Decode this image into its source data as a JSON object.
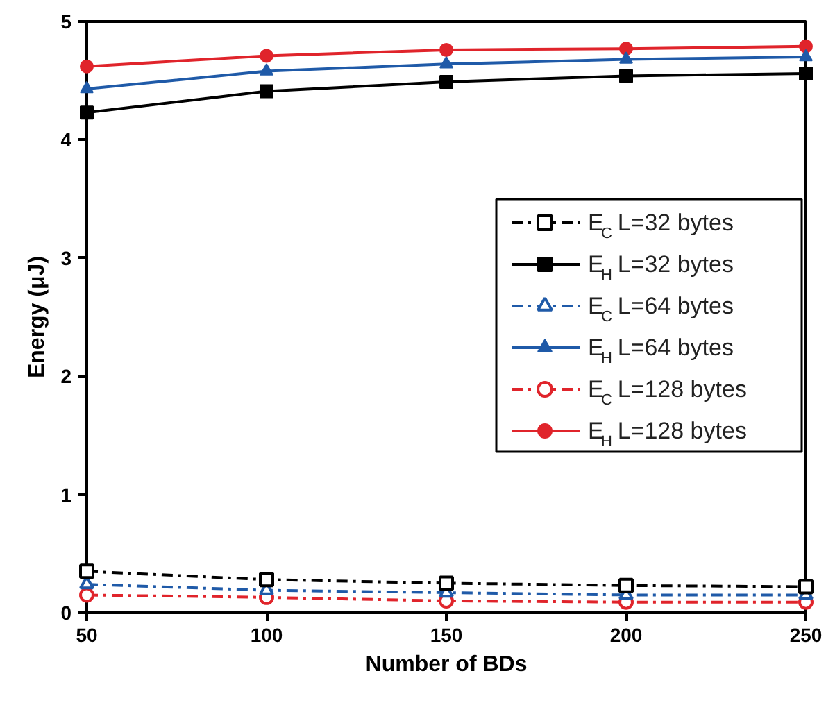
{
  "chart_data": {
    "type": "line",
    "xlabel": "Number of BDs",
    "ylabel": "Energy (μJ)",
    "x": [
      50,
      100,
      150,
      200,
      250
    ],
    "xlim": [
      50,
      250
    ],
    "xticks": [
      50,
      100,
      150,
      200,
      250
    ],
    "ylim": [
      0,
      5
    ],
    "yticks": [
      0,
      1,
      2,
      3,
      4,
      5
    ],
    "grid": false,
    "legend": "right",
    "series": [
      {
        "name": "E$_{C}$ L=32 bytes",
        "color": "#000000",
        "marker": "square",
        "line_style": "dashdot",
        "values": [
          0.35,
          0.28,
          0.25,
          0.23,
          0.22
        ]
      },
      {
        "name": "E$_{H}$ L=32 bytes",
        "color": "#000000",
        "marker": "square",
        "line_style": "solid",
        "values": [
          4.23,
          4.41,
          4.49,
          4.54,
          4.56
        ]
      },
      {
        "name": "E$_{C}$ L=64 bytes",
        "color": "#1f5aa8",
        "marker": "triangle",
        "line_style": "dashdot",
        "values": [
          0.24,
          0.19,
          0.17,
          0.15,
          0.15
        ]
      },
      {
        "name": "E$_{H}$ L=64 bytes",
        "color": "#1f5aa8",
        "marker": "triangle",
        "line_style": "solid",
        "values": [
          4.43,
          4.58,
          4.64,
          4.68,
          4.7
        ]
      },
      {
        "name": "E$_{C}$ L=128 bytes",
        "color": "#e0242b",
        "marker": "circle",
        "line_style": "dashdot",
        "values": [
          0.15,
          0.13,
          0.1,
          0.09,
          0.09
        ]
      },
      {
        "name": "E$_{H}$ L=128 bytes",
        "color": "#e0242b",
        "marker": "circle",
        "line_style": "solid",
        "values": [
          4.62,
          4.71,
          4.76,
          4.77,
          4.79
        ]
      }
    ]
  }
}
